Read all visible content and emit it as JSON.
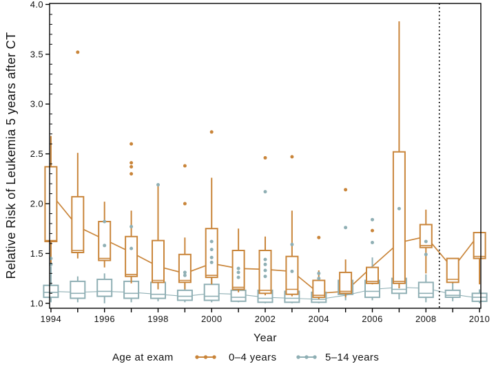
{
  "figure": {
    "ylabel": "Relative Risk of Leukemia 5 years after CT",
    "xlabel": "Year",
    "legend_title": "Age at exam"
  },
  "chart_data": {
    "type": "boxplot",
    "title": "",
    "xlabel": "Year",
    "ylabel": "Relative Risk of Leukemia 5 years after CT",
    "legend_title": "Age at exam",
    "legend_position": "bottom",
    "grid": false,
    "xlim": [
      1993.95,
      2010.05
    ],
    "ylim": [
      0.95,
      4.01
    ],
    "y_ticks": [
      1.0,
      1.5,
      2.0,
      2.5,
      3.0,
      3.5,
      4.0
    ],
    "y_minor_tick_step": 0.1,
    "x_labeled_ticks": [
      1994,
      1996,
      1998,
      2000,
      2002,
      2004,
      2006,
      2008,
      2010
    ],
    "years": [
      1994,
      1995,
      1996,
      1997,
      1998,
      1999,
      2000,
      2001,
      2002,
      2003,
      2004,
      2005,
      2006,
      2007,
      2008,
      2009,
      2010
    ],
    "reference_line_x": 2008.5,
    "frame_color": "#000000",
    "series": [
      {
        "name": "0–4 years",
        "color": "#c9853a",
        "trend": [
          2.1,
          1.77,
          1.64,
          1.51,
          1.37,
          1.3,
          1.4,
          1.35,
          1.34,
          1.32,
          1.1,
          1.12,
          1.37,
          1.61,
          1.67,
          1.35,
          1.7
        ],
        "boxes": [
          {
            "year": 1994,
            "lo": 1.4,
            "q1": 1.62,
            "med": 1.63,
            "q3": 2.37,
            "hi": 2.68,
            "outliers": []
          },
          {
            "year": 1995,
            "lo": 1.45,
            "q1": 1.51,
            "med": 1.53,
            "q3": 2.07,
            "hi": 2.51,
            "outliers": [
              3.52
            ]
          },
          {
            "year": 1996,
            "lo": 1.36,
            "q1": 1.43,
            "med": 1.45,
            "q3": 1.82,
            "hi": 2.02,
            "outliers": []
          },
          {
            "year": 1997,
            "lo": 1.2,
            "q1": 1.27,
            "med": 1.29,
            "q3": 1.67,
            "hi": 1.93,
            "outliers": [
              2.6,
              2.41,
              2.37,
              2.3
            ]
          },
          {
            "year": 1998,
            "lo": 1.14,
            "q1": 1.21,
            "med": 1.23,
            "q3": 1.63,
            "hi": 2.18,
            "outliers": []
          },
          {
            "year": 1999,
            "lo": 1.14,
            "q1": 1.21,
            "med": 1.23,
            "q3": 1.49,
            "hi": 1.66,
            "outliers": [
              2.38,
              2.0
            ]
          },
          {
            "year": 2000,
            "lo": 1.19,
            "q1": 1.26,
            "med": 1.28,
            "q3": 1.75,
            "hi": 2.26,
            "outliers": [
              2.72
            ]
          },
          {
            "year": 2001,
            "lo": 1.11,
            "q1": 1.14,
            "med": 1.16,
            "q3": 1.53,
            "hi": 1.75,
            "outliers": []
          },
          {
            "year": 2002,
            "lo": 1.08,
            "q1": 1.1,
            "med": 1.13,
            "q3": 1.53,
            "hi": 1.67,
            "outliers": [
              2.46
            ]
          },
          {
            "year": 2003,
            "lo": 1.07,
            "q1": 1.09,
            "med": 1.14,
            "q3": 1.47,
            "hi": 1.93,
            "outliers": [
              2.47
            ]
          },
          {
            "year": 2004,
            "lo": 1.04,
            "q1": 1.06,
            "med": 1.08,
            "q3": 1.23,
            "hi": 1.33,
            "outliers": [
              1.66
            ]
          },
          {
            "year": 2005,
            "lo": 1.06,
            "q1": 1.1,
            "med": 1.12,
            "q3": 1.31,
            "hi": 1.44,
            "outliers": [
              2.14
            ]
          },
          {
            "year": 2006,
            "lo": 1.19,
            "q1": 1.2,
            "med": 1.22,
            "q3": 1.36,
            "hi": 1.36,
            "outliers": [
              1.73
            ]
          },
          {
            "year": 2007,
            "lo": 1.15,
            "q1": 1.2,
            "med": 1.22,
            "q3": 2.52,
            "hi": 3.83,
            "outliers": []
          },
          {
            "year": 2008,
            "lo": 1.3,
            "q1": 1.56,
            "med": 1.58,
            "q3": 1.79,
            "hi": 1.94,
            "outliers": []
          },
          {
            "year": 2009,
            "lo": 1.2,
            "q1": 1.21,
            "med": 1.24,
            "q3": 1.45,
            "hi": 1.45,
            "outliers": []
          },
          {
            "year": 2010,
            "lo": 1.19,
            "q1": 1.45,
            "med": 1.47,
            "q3": 1.71,
            "hi": 1.71,
            "outliers": []
          }
        ]
      },
      {
        "name": "5–14 years",
        "color": "#8fafb4",
        "trend": [
          1.12,
          1.11,
          1.12,
          1.11,
          1.09,
          1.07,
          1.1,
          1.09,
          1.06,
          1.05,
          1.04,
          1.08,
          1.14,
          1.16,
          1.15,
          1.09,
          1.05
        ],
        "boxes": [
          {
            "year": 1994,
            "lo": 1.01,
            "q1": 1.06,
            "med": 1.11,
            "q3": 1.18,
            "hi": 1.37,
            "outliers": [
              1.45,
              1.39
            ]
          },
          {
            "year": 1995,
            "lo": 1.01,
            "q1": 1.05,
            "med": 1.1,
            "q3": 1.22,
            "hi": 1.27,
            "outliers": []
          },
          {
            "year": 1996,
            "lo": 1.0,
            "q1": 1.07,
            "med": 1.12,
            "q3": 1.24,
            "hi": 1.3,
            "outliers": [
              1.82,
              1.58
            ]
          },
          {
            "year": 1997,
            "lo": 1.01,
            "q1": 1.05,
            "med": 1.1,
            "q3": 1.22,
            "hi": 1.3,
            "outliers": [
              1.77,
              1.55
            ]
          },
          {
            "year": 1998,
            "lo": 1.02,
            "q1": 1.05,
            "med": 1.09,
            "q3": 1.21,
            "hi": 1.37,
            "outliers": [
              2.19
            ]
          },
          {
            "year": 1999,
            "lo": 1.01,
            "q1": 1.03,
            "med": 1.07,
            "q3": 1.13,
            "hi": 1.2,
            "outliers": [
              1.31,
              1.28
            ]
          },
          {
            "year": 2000,
            "lo": 1.01,
            "q1": 1.03,
            "med": 1.07,
            "q3": 1.19,
            "hi": 1.3,
            "outliers": [
              1.62,
              1.54,
              1.46,
              1.41
            ]
          },
          {
            "year": 2001,
            "lo": 1.01,
            "q1": 1.02,
            "med": 1.06,
            "q3": 1.13,
            "hi": 1.2,
            "outliers": [
              1.35,
              1.31,
              1.26
            ]
          },
          {
            "year": 2002,
            "lo": 1.0,
            "q1": 1.01,
            "med": 1.05,
            "q3": 1.13,
            "hi": 1.2,
            "outliers": [
              2.12,
              1.44,
              1.39,
              1.33,
              1.27
            ]
          },
          {
            "year": 2003,
            "lo": 1.0,
            "q1": 1.01,
            "med": 1.05,
            "q3": 1.12,
            "hi": 1.18,
            "outliers": [
              1.59,
              1.32
            ]
          },
          {
            "year": 2004,
            "lo": 1.0,
            "q1": 1.01,
            "med": 1.04,
            "q3": 1.11,
            "hi": 1.16,
            "outliers": [
              1.3,
              1.25
            ]
          },
          {
            "year": 2005,
            "lo": 1.03,
            "q1": 1.09,
            "med": 1.12,
            "q3": 1.23,
            "hi": 1.3,
            "outliers": [
              1.76
            ]
          },
          {
            "year": 2006,
            "lo": 1.03,
            "q1": 1.06,
            "med": 1.12,
            "q3": 1.23,
            "hi": 1.46,
            "outliers": [
              1.84,
              1.61
            ]
          },
          {
            "year": 2007,
            "lo": 1.04,
            "q1": 1.1,
            "med": 1.14,
            "q3": 1.25,
            "hi": 1.46,
            "outliers": [
              1.95
            ]
          },
          {
            "year": 2008,
            "lo": 1.01,
            "q1": 1.06,
            "med": 1.1,
            "q3": 1.21,
            "hi": 1.29,
            "outliers": [
              1.62,
              1.49
            ]
          },
          {
            "year": 2009,
            "lo": 1.02,
            "q1": 1.06,
            "med": 1.08,
            "q3": 1.13,
            "hi": 1.21,
            "outliers": []
          },
          {
            "year": 2010,
            "lo": 1.0,
            "q1": 1.02,
            "med": 1.06,
            "q3": 1.1,
            "hi": 1.14,
            "outliers": []
          }
        ]
      }
    ]
  }
}
